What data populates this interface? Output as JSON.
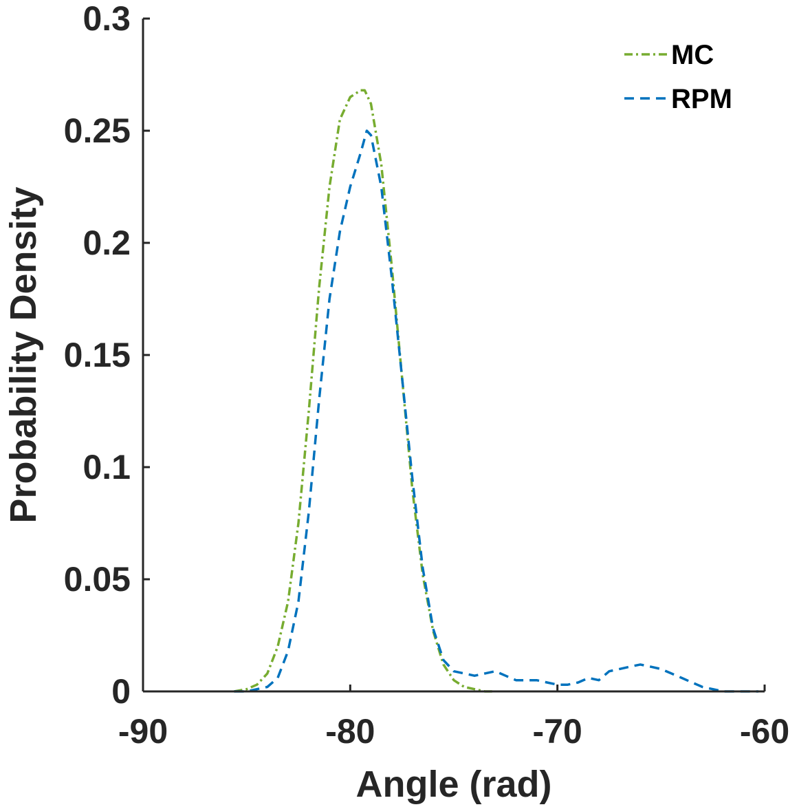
{
  "chart_data": {
    "type": "line",
    "title": "",
    "xlabel": "Angle (rad)",
    "ylabel": "Probability Density",
    "xlim": [
      -90,
      -60
    ],
    "ylim": [
      0,
      0.3
    ],
    "xticks": [
      -90,
      -80,
      -70,
      -60
    ],
    "xtick_labels": [
      "-90",
      "-80",
      "-70",
      "-60"
    ],
    "yticks": [
      0,
      0.05,
      0.1,
      0.15,
      0.2,
      0.25,
      0.3
    ],
    "ytick_labels": [
      "0",
      "0.05",
      "0.1",
      "0.15",
      "0.2",
      "0.25",
      "0.3"
    ],
    "grid": false,
    "legend_position": "top-right",
    "series": [
      {
        "name": "MC",
        "color": "#77AC30",
        "dash": "dash-dot",
        "x": [
          -85.6,
          -85.0,
          -84.5,
          -84.0,
          -83.5,
          -83.0,
          -82.5,
          -82.0,
          -81.5,
          -81.0,
          -80.5,
          -80.0,
          -79.5,
          -79.3,
          -79.0,
          -78.5,
          -78.0,
          -77.5,
          -77.0,
          -76.5,
          -76.0,
          -75.5,
          -75.0,
          -74.5,
          -74.0,
          -73.5,
          -73.0
        ],
        "y": [
          0.0,
          0.001,
          0.003,
          0.008,
          0.02,
          0.04,
          0.075,
          0.125,
          0.18,
          0.225,
          0.255,
          0.265,
          0.268,
          0.268,
          0.262,
          0.235,
          0.19,
          0.14,
          0.09,
          0.052,
          0.027,
          0.012,
          0.005,
          0.002,
          0.001,
          0.0,
          0.0
        ]
      },
      {
        "name": "RPM",
        "color": "#0072BD",
        "dash": "dashed",
        "x": [
          -85.6,
          -85.0,
          -84.5,
          -84.0,
          -83.5,
          -83.0,
          -82.5,
          -82.0,
          -81.5,
          -81.0,
          -80.5,
          -80.0,
          -79.5,
          -79.2,
          -79.0,
          -78.5,
          -78.0,
          -77.5,
          -77.0,
          -76.5,
          -76.0,
          -75.5,
          -75.0,
          -74.5,
          -74.0,
          -73.5,
          -73.0,
          -72.5,
          -72.0,
          -71.5,
          -71.0,
          -70.5,
          -70.0,
          -69.5,
          -69.0,
          -68.5,
          -68.0,
          -67.5,
          -67.0,
          -66.5,
          -66.0,
          -65.5,
          -65.0,
          -64.5,
          -64.0,
          -63.5,
          -63.0,
          -62.5,
          -62.0,
          -61.5,
          -61.0,
          -60.3
        ],
        "y": [
          0.0,
          0.0,
          0.001,
          0.002,
          0.006,
          0.018,
          0.04,
          0.08,
          0.13,
          0.175,
          0.205,
          0.225,
          0.24,
          0.25,
          0.248,
          0.225,
          0.185,
          0.14,
          0.095,
          0.055,
          0.028,
          0.014,
          0.009,
          0.008,
          0.007,
          0.008,
          0.009,
          0.007,
          0.005,
          0.005,
          0.005,
          0.004,
          0.003,
          0.003,
          0.004,
          0.006,
          0.005,
          0.009,
          0.01,
          0.011,
          0.012,
          0.011,
          0.01,
          0.008,
          0.006,
          0.004,
          0.002,
          0.001,
          0.0,
          0.0,
          0.0,
          0.0
        ]
      }
    ]
  }
}
